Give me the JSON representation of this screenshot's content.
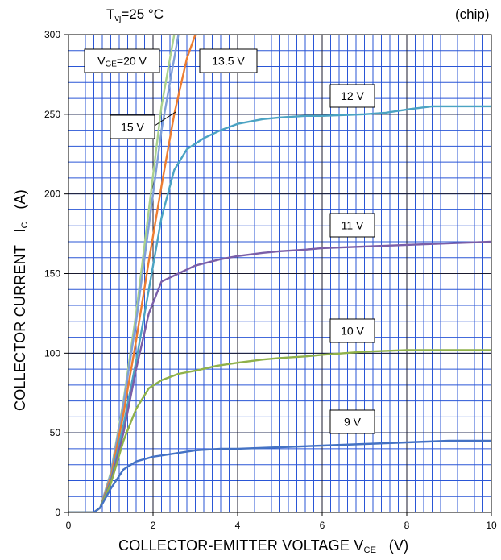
{
  "header": {
    "condition_main": "T",
    "condition_sub": "vj",
    "condition_value": "=25 °C",
    "chip_note": "(chip)"
  },
  "axes": {
    "x_main": "COLLECTOR-EMITTER VOLTAGE   V",
    "x_sub": "CE",
    "x_unit": "   (V)",
    "y_main": "COLLECTOR CURRENT   I",
    "y_sub": "C",
    "y_unit": "   (A)"
  },
  "chart_data": {
    "type": "line",
    "title": "Tvj=25 °C",
    "xlabel": "COLLECTOR-EMITTER VOLTAGE VCE (V)",
    "ylabel": "COLLECTOR CURRENT IC (A)",
    "xlim": [
      0,
      10
    ],
    "ylim": [
      0,
      300
    ],
    "x_ticks": [
      0,
      2,
      4,
      6,
      8,
      10
    ],
    "y_ticks": [
      0,
      50,
      100,
      150,
      200,
      250,
      300
    ],
    "grid": true,
    "series": [
      {
        "name": "VGE=20 V",
        "color": "#a9d18e",
        "points": [
          [
            0,
            0
          ],
          [
            0.6,
            0
          ],
          [
            0.75,
            3
          ],
          [
            1.0,
            25
          ],
          [
            1.3,
            70
          ],
          [
            1.6,
            125
          ],
          [
            1.9,
            190
          ],
          [
            2.2,
            255
          ],
          [
            2.5,
            300
          ]
        ]
      },
      {
        "name": "15 V",
        "color": "#7f9fd8",
        "points": [
          [
            0,
            0
          ],
          [
            0.6,
            0
          ],
          [
            0.75,
            3
          ],
          [
            1.0,
            24
          ],
          [
            1.3,
            68
          ],
          [
            1.6,
            120
          ],
          [
            1.9,
            180
          ],
          [
            2.2,
            240
          ],
          [
            2.6,
            300
          ]
        ]
      },
      {
        "name": "13.5 V",
        "color": "#ed7d31",
        "points": [
          [
            0,
            0
          ],
          [
            0.6,
            0
          ],
          [
            0.75,
            3
          ],
          [
            1.0,
            22
          ],
          [
            1.3,
            62
          ],
          [
            1.6,
            108
          ],
          [
            1.9,
            158
          ],
          [
            2.2,
            205
          ],
          [
            2.5,
            250
          ],
          [
            2.8,
            285
          ],
          [
            3.0,
            300
          ]
        ]
      },
      {
        "name": "12 V",
        "color": "#4ba3c3",
        "points": [
          [
            0,
            0
          ],
          [
            0.6,
            0
          ],
          [
            0.75,
            3
          ],
          [
            1.0,
            20
          ],
          [
            1.3,
            55
          ],
          [
            1.6,
            95
          ],
          [
            1.9,
            140
          ],
          [
            2.2,
            185
          ],
          [
            2.5,
            215
          ],
          [
            2.8,
            228
          ],
          [
            3.2,
            235
          ],
          [
            3.6,
            240
          ],
          [
            4.0,
            244
          ],
          [
            4.6,
            247
          ],
          [
            5.0,
            248
          ],
          [
            5.6,
            249
          ],
          [
            6.0,
            249
          ],
          [
            7.0,
            250
          ],
          [
            7.5,
            251
          ],
          [
            8.0,
            253
          ],
          [
            8.6,
            255
          ],
          [
            10.0,
            255
          ]
        ]
      },
      {
        "name": "11 V",
        "color": "#7a5ea8",
        "points": [
          [
            0,
            0
          ],
          [
            0.6,
            0
          ],
          [
            0.75,
            3
          ],
          [
            1.0,
            19
          ],
          [
            1.3,
            50
          ],
          [
            1.6,
            90
          ],
          [
            1.9,
            125
          ],
          [
            2.2,
            145
          ],
          [
            2.6,
            150
          ],
          [
            3.0,
            155
          ],
          [
            3.6,
            159
          ],
          [
            4.0,
            161
          ],
          [
            4.6,
            163
          ],
          [
            5.0,
            164
          ],
          [
            5.6,
            165
          ],
          [
            6.0,
            166
          ],
          [
            7.0,
            167
          ],
          [
            8.0,
            168
          ],
          [
            9.0,
            169
          ],
          [
            10.0,
            170
          ]
        ]
      },
      {
        "name": "10 V",
        "color": "#8fb14a",
        "points": [
          [
            0,
            0
          ],
          [
            0.6,
            0
          ],
          [
            0.75,
            3
          ],
          [
            1.0,
            18
          ],
          [
            1.3,
            45
          ],
          [
            1.6,
            65
          ],
          [
            1.9,
            78
          ],
          [
            2.2,
            83
          ],
          [
            2.6,
            87
          ],
          [
            3.0,
            89
          ],
          [
            3.5,
            92
          ],
          [
            4.0,
            94
          ],
          [
            4.6,
            96
          ],
          [
            5.0,
            97
          ],
          [
            5.6,
            98
          ],
          [
            6.0,
            99
          ],
          [
            7.0,
            101
          ],
          [
            8.0,
            102
          ],
          [
            10.0,
            102
          ]
        ]
      },
      {
        "name": "9 V",
        "color": "#4472c4",
        "points": [
          [
            0,
            0
          ],
          [
            0.6,
            0
          ],
          [
            0.75,
            3
          ],
          [
            1.0,
            15
          ],
          [
            1.3,
            27
          ],
          [
            1.6,
            32
          ],
          [
            2.0,
            35
          ],
          [
            2.5,
            37
          ],
          [
            3.0,
            39
          ],
          [
            3.6,
            40
          ],
          [
            4.0,
            40
          ],
          [
            5.0,
            41
          ],
          [
            6.0,
            42
          ],
          [
            7.0,
            43
          ],
          [
            8.0,
            44
          ],
          [
            9.0,
            45
          ],
          [
            10.0,
            45
          ]
        ]
      }
    ],
    "annotations": [
      {
        "text": "V",
        "sub": "GE",
        "rest": "=20 V"
      },
      {
        "text": "15 V"
      },
      {
        "text": "13.5 V"
      },
      {
        "text": "12 V"
      },
      {
        "text": "11 V"
      },
      {
        "text": "10 V"
      },
      {
        "text": "9 V"
      }
    ]
  }
}
